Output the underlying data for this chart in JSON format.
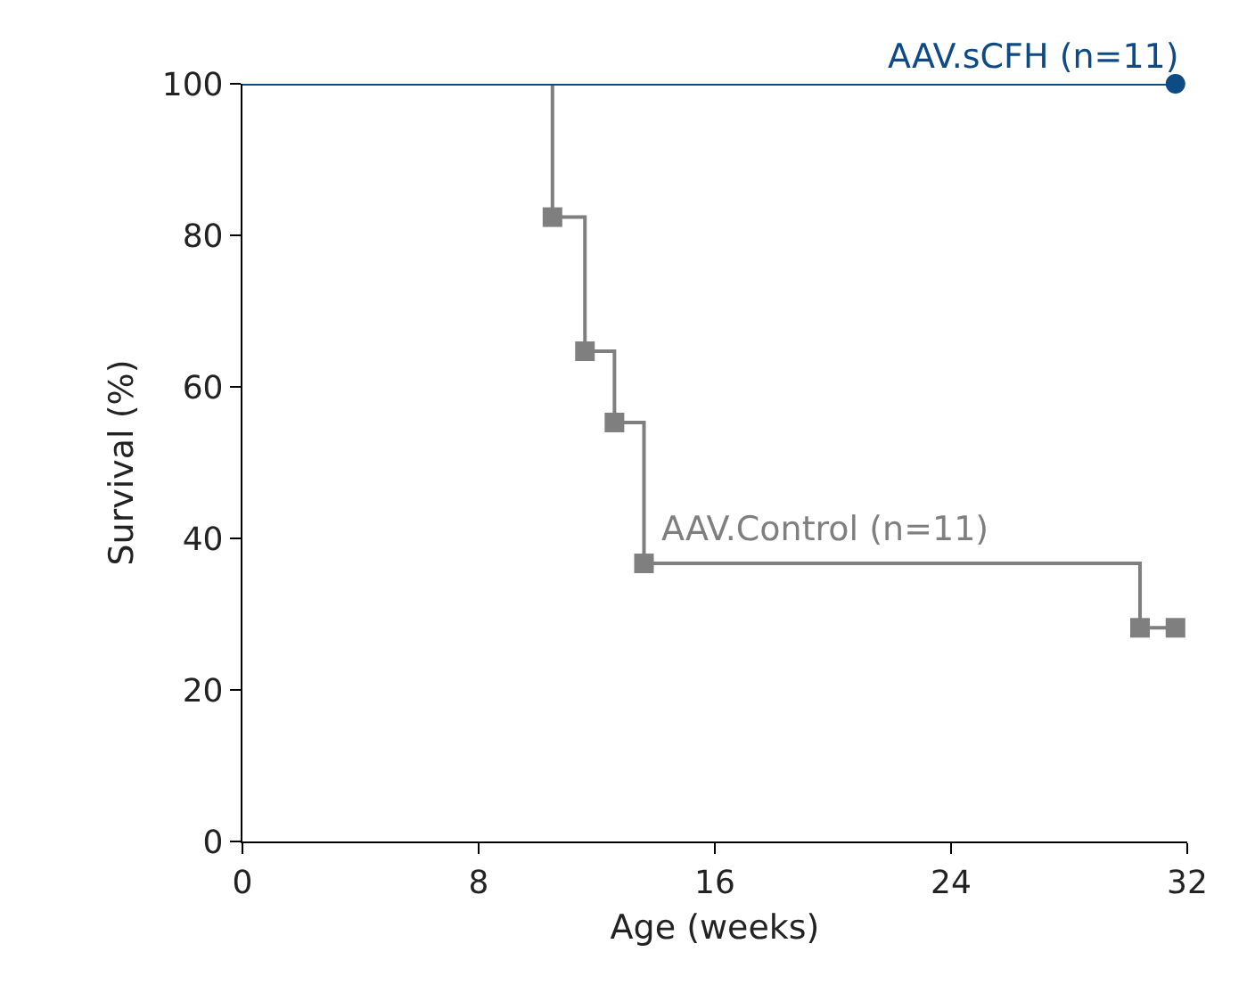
{
  "chart_data": {
    "type": "step",
    "xlabel": "Age (weeks)",
    "ylabel": "Survival (%)",
    "series": [
      {
        "name": "AAV.sCFH (n=11)",
        "color": "#0e4a84",
        "marker": "circle",
        "x": [
          0,
          31.6
        ],
        "values": [
          100,
          100
        ]
      },
      {
        "name": "AAV.Control (n=11)",
        "color": "#7f7f7f",
        "marker": "square",
        "x": [
          0,
          10.5,
          11.6,
          12.6,
          13.6,
          30.4,
          31.6
        ],
        "values": [
          100,
          82.4,
          64.7,
          55.3,
          36.7,
          28.2,
          28.2
        ]
      }
    ],
    "xlim": [
      0,
      32
    ],
    "xticks": [
      0,
      8,
      16,
      24,
      32
    ],
    "ylim": [
      0,
      100
    ],
    "yticks": [
      0,
      20,
      40,
      60,
      80,
      100
    ]
  }
}
